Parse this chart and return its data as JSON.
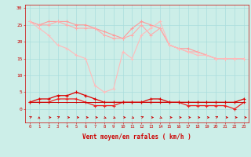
{
  "x": [
    0,
    1,
    2,
    3,
    4,
    5,
    6,
    7,
    8,
    9,
    10,
    11,
    12,
    13,
    14,
    15,
    16,
    17,
    18,
    19,
    20,
    21,
    22,
    23
  ],
  "line_gust1": [
    26,
    25,
    26,
    26,
    26,
    25,
    25,
    24,
    23,
    22,
    21,
    24,
    26,
    25,
    24,
    19,
    18,
    18,
    17,
    16,
    15,
    15,
    15,
    15
  ],
  "line_gust2": [
    26,
    25,
    25,
    26,
    25,
    24,
    24,
    24,
    22,
    21,
    21,
    22,
    25,
    22,
    24,
    19,
    18,
    17,
    17,
    16,
    15,
    15,
    15,
    15
  ],
  "line_gust3": [
    26,
    24,
    22,
    19,
    18,
    16,
    15,
    7,
    5,
    6,
    17,
    15,
    22,
    24,
    26,
    19,
    18,
    17,
    16,
    16,
    15,
    15,
    15,
    15
  ],
  "line_wind1": [
    2,
    3,
    3,
    4,
    4,
    5,
    4,
    3,
    2,
    2,
    2,
    2,
    2,
    3,
    3,
    2,
    2,
    2,
    2,
    2,
    2,
    2,
    2,
    3
  ],
  "line_wind2": [
    2,
    2,
    2,
    3,
    3,
    3,
    2,
    1,
    1,
    1,
    2,
    2,
    2,
    2,
    2,
    2,
    2,
    1,
    1,
    1,
    1,
    1,
    0,
    2
  ],
  "line_wind3": [
    2,
    2,
    2,
    2,
    2,
    2,
    2,
    2,
    2,
    2,
    2,
    2,
    2,
    2,
    2,
    2,
    2,
    2,
    2,
    2,
    2,
    2,
    2,
    2
  ],
  "arrows": [
    45,
    90,
    0,
    45,
    0,
    0,
    0,
    0,
    315,
    315,
    0,
    315,
    45,
    0,
    315,
    0,
    0,
    0,
    0,
    0,
    45,
    0,
    0,
    0
  ],
  "bg_color": "#cceee8",
  "grid_color": "#aadddd",
  "xlabel": "Vent moyen/en rafales ( km/h )",
  "ylim": [
    -4,
    31
  ],
  "xlim": [
    -0.5,
    23.5
  ],
  "yticks": [
    0,
    5,
    10,
    15,
    20,
    25,
    30
  ],
  "xticks": [
    0,
    1,
    2,
    3,
    4,
    5,
    6,
    7,
    8,
    9,
    10,
    11,
    12,
    13,
    14,
    15,
    16,
    17,
    18,
    19,
    20,
    21,
    22,
    23
  ]
}
